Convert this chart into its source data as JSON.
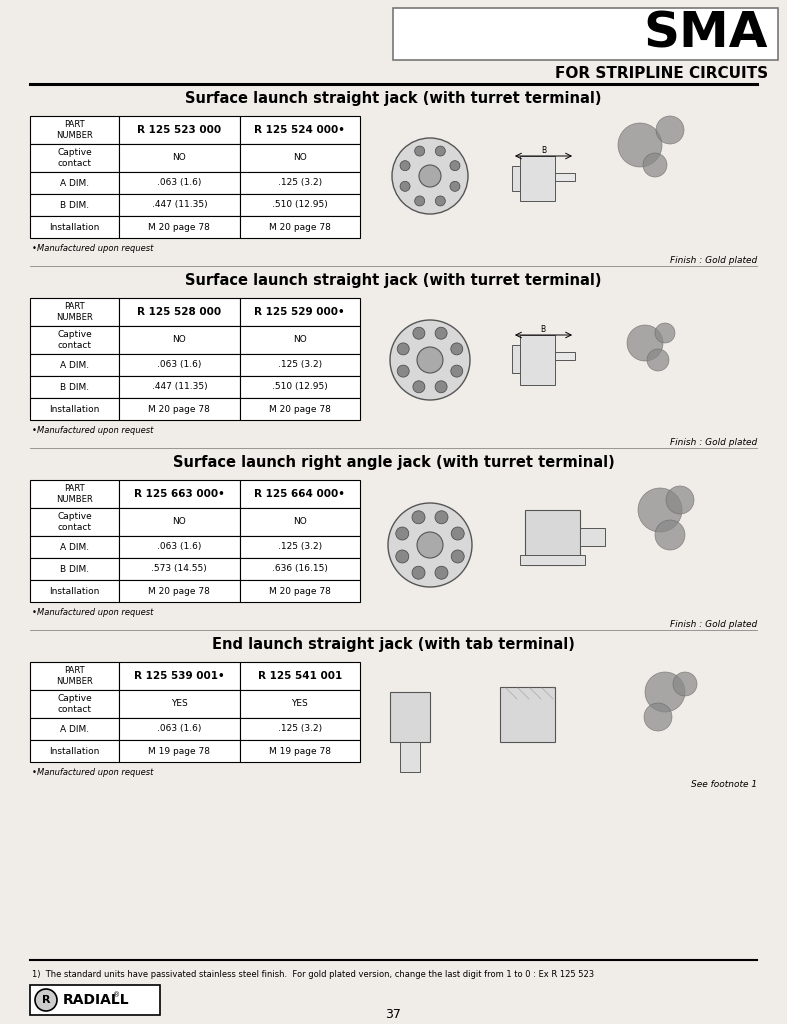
{
  "page_title": "SMA",
  "page_subtitle": "FOR STRIPLINE CIRCUITS",
  "page_number": "37",
  "background_color": "#f0ede8",
  "sections": [
    {
      "title": "Surface launch straight jack (with turret terminal)",
      "part_numbers": [
        "R 125 523 000",
        "R 125 524 000•"
      ],
      "rows": [
        {
          "label": "Captive\ncontact",
          "col1": "NO",
          "col2": "NO"
        },
        {
          "label": "A DIM.",
          "col1": ".063 (1.6)",
          "col2": ".125 (3.2)"
        },
        {
          "label": "B DIM.",
          "col1": ".447 (11.35)",
          "col2": ".510 (12.95)"
        },
        {
          "label": "Installation",
          "col1": "M 20 page 78",
          "col2": "M 20 page 78"
        }
      ],
      "footnote": "•Manufactured upon request",
      "finish": "Finish : Gold plated"
    },
    {
      "title": "Surface launch straight jack (with turret terminal)",
      "part_numbers": [
        "R 125 528 000",
        "R 125 529 000•"
      ],
      "rows": [
        {
          "label": "Captive\ncontact",
          "col1": "NO",
          "col2": "NO"
        },
        {
          "label": "A DIM.",
          "col1": ".063 (1.6)",
          "col2": ".125 (3.2)"
        },
        {
          "label": "B DIM.",
          "col1": ".447 (11.35)",
          "col2": ".510 (12.95)"
        },
        {
          "label": "Installation",
          "col1": "M 20 page 78",
          "col2": "M 20 page 78"
        }
      ],
      "footnote": "•Manufactured upon request",
      "finish": "Finish : Gold plated"
    },
    {
      "title": "Surface launch right angle jack (with turret terminal)",
      "part_numbers": [
        "R 125 663 000•",
        "R 125 664 000•"
      ],
      "rows": [
        {
          "label": "Captive\ncontact",
          "col1": "NO",
          "col2": "NO"
        },
        {
          "label": "A DIM.",
          "col1": ".063 (1.6)",
          "col2": ".125 (3.2)"
        },
        {
          "label": "B DIM.",
          "col1": ".573 (14.55)",
          "col2": ".636 (16.15)"
        },
        {
          "label": "Installation",
          "col1": "M 20 page 78",
          "col2": "M 20 page 78"
        }
      ],
      "footnote": "•Manufactured upon request",
      "finish": "Finish : Gold plated"
    },
    {
      "title": "End launch straight jack (with tab terminal)",
      "part_numbers": [
        "R 125 539 001•",
        "R 125 541 001"
      ],
      "rows": [
        {
          "label": "Captive\ncontact",
          "col1": "YES",
          "col2": "YES"
        },
        {
          "label": "A DIM.",
          "col1": ".063 (1.6)",
          "col2": ".125 (3.2)"
        },
        {
          "label": "Installation",
          "col1": "M 19 page 78",
          "col2": "M 19 page 78"
        }
      ],
      "footnote": "•Manufactured upon request",
      "finish": "See footnote 1"
    }
  ],
  "footer_note": "1)  The standard units have passivated stainless steel finish.  For gold plated version, change the last digit from 1 to 0 : Ex R 125 523",
  "logo_text": "RADIALL"
}
